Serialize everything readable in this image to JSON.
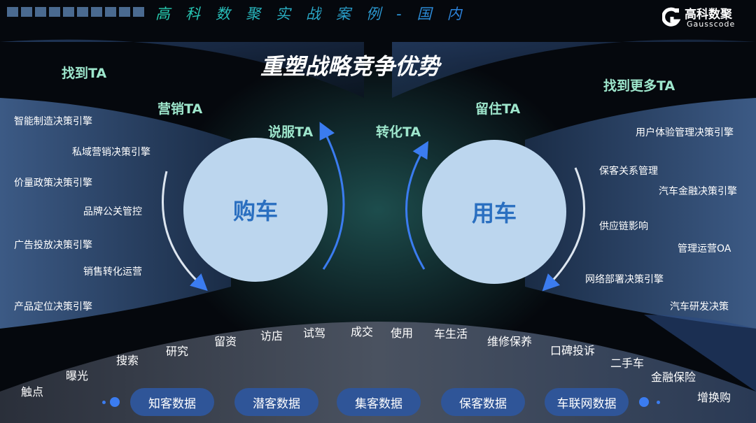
{
  "header": {
    "title": "高科数聚实战案例-国内",
    "logo_cn": "高科数聚",
    "logo_en": "Gausscode"
  },
  "main_title": "重塑战略竞争优势",
  "ta_labels": {
    "find": "找到TA",
    "market": "营销TA",
    "persuade": "说服TA",
    "convert": "转化TA",
    "retain": "留住TA",
    "find_more": "找到更多TA"
  },
  "circles": {
    "buy": "购车",
    "use": "用车"
  },
  "left_engines": [
    "智能制造决策引擎",
    "私域营销决策引擎",
    "价量政策决策引擎",
    "品牌公关管控",
    "广告投放决策引擎",
    "销售转化运营",
    "产品定位决策引擎"
  ],
  "right_engines": [
    "用户体验管理决策引擎",
    "保客关系管理",
    "汽车金融决策引擎",
    "供应链影响",
    "管理运营OA",
    "网络部署决策引擎",
    "汽车研发决策"
  ],
  "journey": [
    "触点",
    "曝光",
    "搜索",
    "研究",
    "留资",
    "访店",
    "试驾",
    "成交",
    "使用",
    "车生活",
    "维修保养",
    "口碑投诉",
    "二手车",
    "金融保险",
    "增换购"
  ],
  "data_pills": [
    "知客数据",
    "潜客数据",
    "集客数据",
    "保客数据",
    "车联网数据"
  ],
  "colors": {
    "accent": "#3b7cf0",
    "circle": "#bcd6ee",
    "circle_text": "#2a6fc0",
    "ta_text": "#9ee6cc",
    "pill": "#2f5598"
  }
}
